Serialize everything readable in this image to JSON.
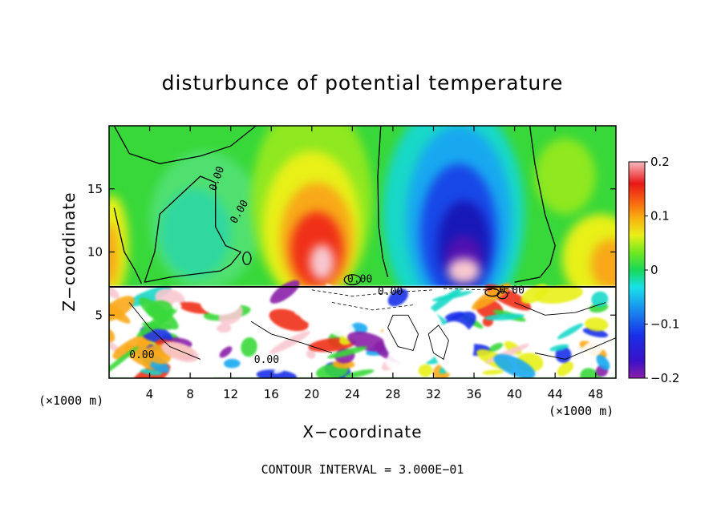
{
  "chart_data": {
    "type": "heatmap",
    "title": "disturbunce of potential temperature",
    "xlabel": "X−coordinate",
    "ylabel": "Z−coordinate",
    "x_unit_label": "(×1000 m)",
    "z_unit_label": "(×1000 m)",
    "footer": "CONTOUR INTERVAL = 3.000E−01",
    "xlim": [
      0,
      50
    ],
    "ylim": [
      0,
      20
    ],
    "x_ticks": [
      4,
      8,
      12,
      16,
      20,
      24,
      28,
      32,
      36,
      40,
      44,
      48
    ],
    "x_tick_labels": [
      "4",
      "8",
      "12",
      "16",
      "20",
      "24",
      "28",
      "32",
      "36",
      "40",
      "44",
      "48"
    ],
    "y_ticks": [
      5,
      10,
      15
    ],
    "y_tick_labels": [
      "5",
      "10",
      "15"
    ],
    "colorbar": {
      "range": [
        -0.2,
        0.2
      ],
      "ticks": [
        0.2,
        0.1,
        0,
        -0.1,
        -0.2
      ],
      "tick_labels": [
        "0.2",
        "0.1",
        "0",
        "−0.1",
        "−0.2"
      ]
    },
    "contour_labels": [
      "0.00",
      "0.00",
      "0.00",
      "0.00",
      "0.00",
      "0.00",
      "0.00"
    ],
    "upper_features": [
      {
        "x": 20,
        "z": 10.0,
        "value": 0.18
      },
      {
        "x": 35,
        "z": 11.5,
        "value": -0.19
      },
      {
        "x": 9,
        "z": 12.0,
        "value": -0.02
      },
      {
        "x": 48,
        "z": 9.5,
        "value": 0.1
      }
    ]
  }
}
